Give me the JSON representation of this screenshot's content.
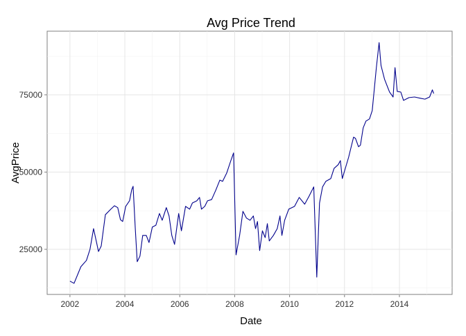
{
  "chart_data": {
    "type": "line",
    "title": "Avg Price Trend",
    "x_label": "Date",
    "y_label": "AvgPrice",
    "color": "#00008b",
    "grid": true,
    "x": [
      2002.0,
      2002.15,
      2002.4,
      2002.6,
      2002.73,
      2002.86,
      2003.04,
      2003.14,
      2003.29,
      2003.49,
      2003.62,
      2003.74,
      2003.84,
      2003.92,
      2004.03,
      2004.17,
      2004.25,
      2004.3,
      2004.38,
      2004.45,
      2004.55,
      2004.65,
      2004.78,
      2004.88,
      2005.0,
      2005.13,
      2005.26,
      2005.36,
      2005.51,
      2005.61,
      2005.71,
      2005.81,
      2005.96,
      2006.06,
      2006.21,
      2006.36,
      2006.46,
      2006.62,
      2006.72,
      2006.79,
      2006.91,
      2007.01,
      2007.16,
      2007.31,
      2007.46,
      2007.56,
      2007.71,
      2007.86,
      2007.96,
      2008.05,
      2008.18,
      2008.3,
      2008.43,
      2008.56,
      2008.68,
      2008.76,
      2008.83,
      2008.91,
      2009.01,
      2009.11,
      2009.19,
      2009.26,
      2009.41,
      2009.55,
      2009.65,
      2009.72,
      2009.82,
      2009.97,
      2010.18,
      2010.35,
      2010.55,
      2010.71,
      2010.88,
      2010.99,
      2011.09,
      2011.2,
      2011.32,
      2011.5,
      2011.62,
      2011.77,
      2011.85,
      2011.92,
      2012.03,
      2012.15,
      2012.33,
      2012.4,
      2012.51,
      2012.58,
      2012.68,
      2012.78,
      2012.91,
      2013.01,
      2013.16,
      2013.26,
      2013.33,
      2013.46,
      2013.64,
      2013.77,
      2013.84,
      2013.92,
      2014.05,
      2014.15,
      2014.35,
      2014.55,
      2014.76,
      2014.93,
      2015.1,
      2015.2,
      2015.25
    ],
    "values": [
      14700,
      14000,
      19400,
      21400,
      25000,
      31700,
      24300,
      26100,
      36200,
      38000,
      39100,
      38500,
      34600,
      34000,
      38900,
      40700,
      44300,
      45400,
      31700,
      21000,
      22800,
      29500,
      29500,
      27200,
      32200,
      32800,
      36600,
      34400,
      38500,
      35800,
      29500,
      26600,
      36600,
      31000,
      38900,
      38000,
      40000,
      40700,
      41800,
      38000,
      38900,
      40700,
      41100,
      44100,
      47400,
      47000,
      49700,
      53700,
      56200,
      23200,
      29500,
      37300,
      35100,
      34400,
      35800,
      31700,
      34000,
      24600,
      31000,
      28800,
      33300,
      27700,
      29500,
      31700,
      35800,
      29500,
      34400,
      38000,
      38900,
      41800,
      39600,
      42200,
      45200,
      16000,
      40000,
      45200,
      47000,
      47900,
      51200,
      52400,
      53700,
      47900,
      51200,
      54800,
      61300,
      60900,
      58200,
      58700,
      64300,
      66500,
      67200,
      69900,
      83800,
      91900,
      84500,
      80000,
      75900,
      74300,
      83800,
      76100,
      75900,
      73200,
      74100,
      74300,
      73900,
      73600,
      74300,
      76600,
      75400
    ],
    "xlim": [
      2001.17,
      2015.92
    ],
    "xticks": [
      2002,
      2004,
      2006,
      2008,
      2010,
      2012,
      2014
    ],
    "x_minor_grid": [
      2003,
      2005,
      2007,
      2009,
      2011,
      2013,
      2015
    ],
    "ylim": [
      10400,
      95600
    ],
    "yticks": [
      25000,
      50000,
      75000
    ],
    "y_minor_grid": [
      12500,
      37500,
      62500,
      87500
    ]
  }
}
